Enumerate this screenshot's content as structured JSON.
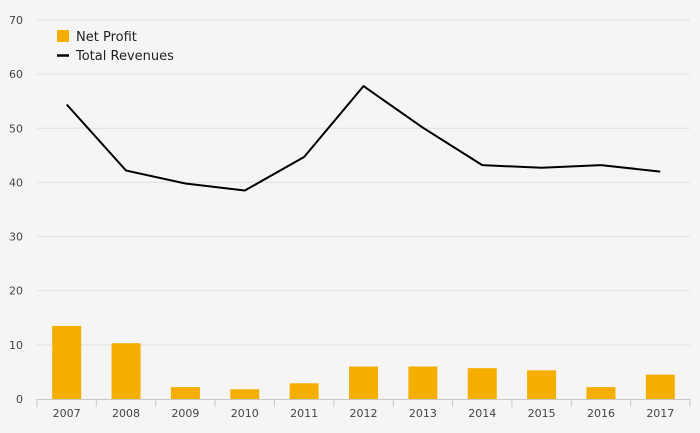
{
  "chart_data": {
    "type": "bar",
    "categories": [
      "2007",
      "2008",
      "2009",
      "2010",
      "2011",
      "2012",
      "2013",
      "2014",
      "2015",
      "2016",
      "2017"
    ],
    "series": [
      {
        "name": "Net Profit",
        "kind": "bar",
        "color": "#f5ae00",
        "values": [
          13.5,
          10.3,
          2.2,
          1.8,
          2.9,
          6.0,
          6.0,
          5.7,
          5.3,
          2.2,
          4.5
        ]
      },
      {
        "name": "Total Revenues",
        "kind": "line",
        "color": "#000000",
        "values": [
          54.4,
          42.2,
          39.8,
          38.5,
          44.7,
          57.8,
          50.1,
          43.2,
          42.7,
          43.2,
          42.0
        ]
      }
    ],
    "yticks": [
      "0",
      "10",
      "20",
      "30",
      "40",
      "50",
      "60",
      "70"
    ],
    "ylim": [
      0,
      70
    ],
    "grid": true,
    "legend_position": "top-left",
    "title": "",
    "xlabel": "",
    "ylabel": ""
  }
}
